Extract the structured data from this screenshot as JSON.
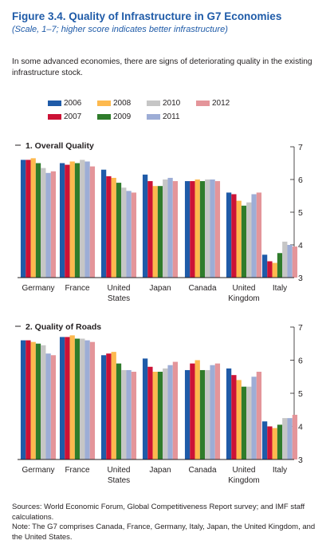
{
  "figure": {
    "title": "Figure 3.4.  Quality of Infrastructure in G7 Economies",
    "subtitle": "(Scale, 1–7; higher score indicates better infrastructure)",
    "intro": "In some advanced economies, there are signs of deteriorating quality in the existing infrastructure stock.",
    "sources": "Sources: World Economic Forum, Global Competitiveness Report survey; and IMF staff calculations.",
    "note": "Note: The G7 comprises Canada, France, Germany, Italy, Japan, the United Kingdom, and the United States."
  },
  "legend": [
    {
      "label": "2006",
      "color": "#1f5ba8"
    },
    {
      "label": "2008",
      "color": "#fdb94e"
    },
    {
      "label": "2010",
      "color": "#c6c6c6"
    },
    {
      "label": "2012",
      "color": "#e4959a"
    },
    {
      "label": "2007",
      "color": "#cc1236"
    },
    {
      "label": "2009",
      "color": "#2f7c2b"
    },
    {
      "label": "2011",
      "color": "#9dadd6"
    }
  ],
  "chart_data": [
    {
      "type": "bar",
      "title": "1. Overall Quality",
      "categories": [
        [
          "Germany"
        ],
        [
          "France"
        ],
        [
          "United",
          "States"
        ],
        [
          "Japan"
        ],
        [
          "Canada"
        ],
        [
          "United",
          "Kingdom"
        ],
        [
          "Italy"
        ]
      ],
      "ylim": [
        3,
        7
      ],
      "yticks": [
        "3",
        "4",
        "5",
        "6",
        "7"
      ],
      "series": [
        {
          "name": "2006",
          "color": "#1f5ba8",
          "values": [
            6.6,
            6.5,
            6.3,
            6.15,
            5.95,
            5.6,
            3.7
          ]
        },
        {
          "name": "2007",
          "color": "#cc1236",
          "values": [
            6.6,
            6.45,
            6.1,
            5.95,
            5.95,
            5.55,
            3.5
          ]
        },
        {
          "name": "2008",
          "color": "#fdb94e",
          "values": [
            6.65,
            6.55,
            6.05,
            5.8,
            6.0,
            5.35,
            3.45
          ]
        },
        {
          "name": "2009",
          "color": "#2f7c2b",
          "values": [
            6.5,
            6.5,
            5.9,
            5.8,
            5.95,
            5.2,
            3.75
          ]
        },
        {
          "name": "2010",
          "color": "#c6c6c6",
          "values": [
            6.35,
            6.6,
            5.75,
            6.0,
            6.0,
            5.3,
            4.1
          ]
        },
        {
          "name": "2011",
          "color": "#9dadd6",
          "values": [
            6.2,
            6.55,
            5.65,
            6.05,
            6.0,
            5.55,
            4.0
          ]
        },
        {
          "name": "2012",
          "color": "#e4959a",
          "values": [
            6.25,
            6.4,
            5.6,
            5.95,
            5.95,
            5.6,
            3.95
          ]
        }
      ]
    },
    {
      "type": "bar",
      "title": "2. Quality of Roads",
      "categories": [
        [
          "Germany"
        ],
        [
          "France"
        ],
        [
          "United",
          "States"
        ],
        [
          "Japan"
        ],
        [
          "Canada"
        ],
        [
          "United",
          "Kingdom"
        ],
        [
          "Italy"
        ]
      ],
      "ylim": [
        3,
        7
      ],
      "yticks": [
        "3",
        "4",
        "5",
        "6",
        "7"
      ],
      "series": [
        {
          "name": "2006",
          "color": "#1f5ba8",
          "values": [
            6.6,
            6.7,
            6.15,
            6.05,
            5.7,
            5.75,
            4.15
          ]
        },
        {
          "name": "2007",
          "color": "#cc1236",
          "values": [
            6.6,
            6.7,
            6.2,
            5.8,
            5.9,
            5.55,
            4.0
          ]
        },
        {
          "name": "2008",
          "color": "#fdb94e",
          "values": [
            6.55,
            6.75,
            6.25,
            5.65,
            6.0,
            5.4,
            3.95
          ]
        },
        {
          "name": "2009",
          "color": "#2f7c2b",
          "values": [
            6.5,
            6.65,
            5.9,
            5.65,
            5.7,
            5.2,
            4.05
          ]
        },
        {
          "name": "2010",
          "color": "#c6c6c6",
          "values": [
            6.45,
            6.65,
            5.7,
            5.75,
            5.7,
            5.2,
            4.25
          ]
        },
        {
          "name": "2011",
          "color": "#9dadd6",
          "values": [
            6.2,
            6.6,
            5.7,
            5.85,
            5.85,
            5.5,
            4.25
          ]
        },
        {
          "name": "2012",
          "color": "#e4959a",
          "values": [
            6.15,
            6.55,
            5.65,
            5.95,
            5.9,
            5.65,
            4.35
          ]
        }
      ]
    }
  ]
}
